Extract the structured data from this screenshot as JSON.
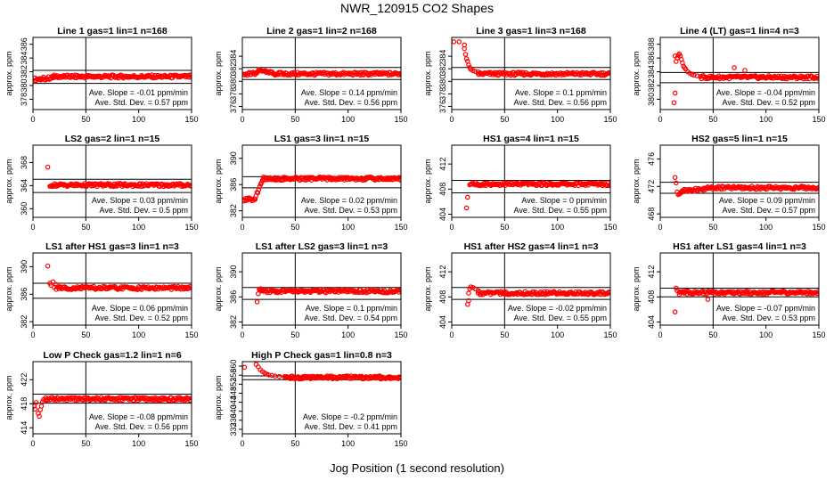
{
  "page": {
    "title": "NWR_120915  CO2 Shapes",
    "xlabel": "Jog Position (1 second resolution)"
  },
  "panel_text": {
    "ylabel": "approx. ppm",
    "slope_prefix": "Ave. Slope = ",
    "slope_unit": " ppm/min",
    "std_prefix": "Ave. Std. Dev. = ",
    "std_unit": " ppm"
  },
  "colors": {
    "points": "#ff0000",
    "axes": "#000000"
  },
  "chart_data": [
    {
      "type": "scatter",
      "title": "Line 1 gas=1 lin=1 n=168",
      "xlim": [
        0,
        150
      ],
      "xticks": [
        0,
        50,
        100,
        150
      ],
      "ylim": [
        376.5,
        387
      ],
      "yticks": [
        378,
        380,
        382,
        384,
        386
      ],
      "hlines": [
        380.3,
        382.2
      ],
      "vline": 50,
      "slope": "-0.01",
      "std": "0.57",
      "series": [
        {
          "x": [
            1,
            10
          ],
          "y": [
            380.9,
            381.0
          ]
        },
        {
          "x": [
            11,
            20
          ],
          "y": [
            381.0,
            381.2
          ]
        },
        {
          "x": [
            20,
            150
          ],
          "y": [
            381.3,
            381.3
          ]
        }
      ]
    },
    {
      "type": "scatter",
      "title": "Line 2 gas=1 lin=2 n=168",
      "xlim": [
        0,
        150
      ],
      "xticks": [
        0,
        50,
        100,
        150
      ],
      "ylim": [
        375.5,
        387
      ],
      "yticks": [
        376,
        378,
        380,
        382,
        384
      ],
      "hlines": [
        380.3,
        382.2
      ],
      "vline": 50,
      "slope": "0.14",
      "std": "0.56",
      "series": [
        {
          "x": [
            1,
            12
          ],
          "y": [
            381.1,
            381.3
          ]
        },
        {
          "x": [
            12,
            18
          ],
          "y": [
            381.4,
            381.9
          ]
        },
        {
          "x": [
            18,
            30
          ],
          "y": [
            381.7,
            381.3
          ]
        },
        {
          "x": [
            30,
            150
          ],
          "y": [
            381.2,
            381.2
          ]
        }
      ]
    },
    {
      "type": "scatter",
      "title": "Line 3 gas=1 lin=3 n=168",
      "xlim": [
        0,
        150
      ],
      "xticks": [
        0,
        50,
        100,
        150
      ],
      "ylim": [
        375.5,
        387
      ],
      "yticks": [
        376,
        378,
        380,
        382,
        384
      ],
      "hlines": [
        380.3,
        382.2
      ],
      "vline": 50,
      "slope": "0.1",
      "std": "0.56",
      "points": [
        [
          2,
          386.3
        ],
        [
          7,
          386.3
        ],
        [
          12,
          385.8
        ],
        [
          12,
          385.2
        ],
        [
          13,
          384.3
        ],
        [
          14,
          383.6
        ],
        [
          15,
          383.2
        ],
        [
          16,
          382.6
        ],
        [
          17,
          382.2
        ],
        [
          18,
          381.9
        ],
        [
          20,
          381.7
        ],
        [
          22,
          381.6
        ],
        [
          25,
          381.5
        ]
      ],
      "series": [
        {
          "x": [
            25,
            150
          ],
          "y": [
            381.2,
            381.2
          ]
        }
      ]
    },
    {
      "type": "scatter",
      "title": "Line 4 (LT) gas=1 lin=4 n=3",
      "xlim": [
        0,
        150
      ],
      "xticks": [
        0,
        50,
        100,
        150
      ],
      "ylim": [
        378.5,
        389
      ],
      "yticks": [
        380,
        382,
        384,
        386,
        388
      ],
      "hlines": [
        382.4,
        383.9
      ],
      "vline": 50,
      "slope": "-0.04",
      "std": "0.52",
      "points": [
        [
          13,
          379.5
        ],
        [
          14,
          380.9
        ],
        [
          14,
          386.3
        ],
        [
          15,
          385.5
        ],
        [
          16,
          386.0
        ],
        [
          17,
          386.4
        ],
        [
          18,
          386.6
        ],
        [
          19,
          386.3
        ],
        [
          20,
          385.8
        ],
        [
          21,
          385.3
        ],
        [
          22,
          384.8
        ],
        [
          23,
          384.6
        ],
        [
          24,
          384.4
        ],
        [
          26,
          384.0
        ],
        [
          28,
          383.8
        ],
        [
          30,
          383.6
        ],
        [
          32,
          383.5
        ],
        [
          35,
          383.4
        ],
        [
          38,
          383.3
        ],
        [
          70,
          384.6
        ],
        [
          80,
          384.2
        ]
      ],
      "series": [
        {
          "x": [
            38,
            150
          ],
          "y": [
            383.2,
            383.2
          ]
        }
      ]
    },
    {
      "type": "scatter",
      "title": "LS2 gas=2 lin=1 n=15",
      "xlim": [
        0,
        150
      ],
      "xticks": [
        0,
        50,
        100,
        150
      ],
      "ylim": [
        358.5,
        371
      ],
      "yticks": [
        360,
        364,
        368
      ],
      "hlines": [
        362.8,
        365.1
      ],
      "vline": 50,
      "slope": "0.03",
      "std": "0.5",
      "points": [
        [
          14,
          367.2
        ]
      ],
      "series": [
        {
          "x": [
            16,
            150
          ],
          "y": [
            364.1,
            364.1
          ]
        }
      ]
    },
    {
      "type": "scatter",
      "title": "LS1 gas=3 lin=1 n=15",
      "xlim": [
        0,
        150
      ],
      "xticks": [
        0,
        50,
        100,
        150
      ],
      "ylim": [
        381,
        392
      ],
      "yticks": [
        382,
        386,
        390
      ],
      "hlines": [
        385.5,
        387.2
      ],
      "vline": 50,
      "slope": "0.02",
      "std": "0.53",
      "series": [
        {
          "x": [
            1,
            12
          ],
          "y": [
            383.7,
            383.8
          ]
        },
        {
          "x": [
            12,
            20
          ],
          "y": [
            383.9,
            386.9
          ]
        },
        {
          "x": [
            20,
            150
          ],
          "y": [
            386.9,
            386.9
          ]
        }
      ]
    },
    {
      "type": "scatter",
      "title": "HS1 gas=4 lin=1 n=15",
      "xlim": [
        0,
        150
      ],
      "xticks": [
        0,
        50,
        100,
        150
      ],
      "ylim": [
        403.5,
        415
      ],
      "yticks": [
        404,
        408,
        412
      ],
      "hlines": [
        407.4,
        409.4
      ],
      "vline": 50,
      "slope": "0",
      "std": "0.55",
      "points": [
        [
          14,
          405.0
        ],
        [
          15,
          406.7
        ]
      ],
      "series": [
        {
          "x": [
            17,
            150
          ],
          "y": [
            408.8,
            408.8
          ]
        }
      ]
    },
    {
      "type": "scatter",
      "title": "HS2 gas=5 lin=1 n=15",
      "xlim": [
        0,
        150
      ],
      "xticks": [
        0,
        50,
        100,
        150
      ],
      "ylim": [
        467.5,
        478
      ],
      "yticks": [
        468,
        472,
        476
      ],
      "hlines": [
        471.0,
        472.6
      ],
      "vline": 50,
      "slope": "0.09",
      "std": "0.57",
      "points": [
        [
          14,
          473.3
        ],
        [
          15,
          472.5
        ],
        [
          16,
          471.2
        ],
        [
          17,
          470.8
        ],
        [
          18,
          470.9
        ],
        [
          19,
          471.0
        ],
        [
          20,
          471.2
        ]
      ],
      "series": [
        {
          "x": [
            20,
            45
          ],
          "y": [
            471.3,
            471.7
          ]
        },
        {
          "x": [
            45,
            150
          ],
          "y": [
            471.8,
            471.8
          ]
        }
      ]
    },
    {
      "type": "scatter",
      "title": "LS1 after HS1 gas=3 lin=1 n=3",
      "xlim": [
        0,
        150
      ],
      "xticks": [
        0,
        50,
        100,
        150
      ],
      "ylim": [
        381.5,
        392
      ],
      "yticks": [
        382,
        386,
        390
      ],
      "hlines": [
        385.4,
        387.6
      ],
      "vline": 50,
      "slope": "0.06",
      "std": "0.52",
      "points": [
        [
          14,
          390.1
        ],
        [
          16,
          387.6
        ],
        [
          17,
          387.3
        ],
        [
          19,
          387.8
        ],
        [
          20,
          387.0
        ],
        [
          22,
          387.4
        ]
      ],
      "series": [
        {
          "x": [
            22,
            150
          ],
          "y": [
            386.9,
            386.9
          ]
        }
      ]
    },
    {
      "type": "scatter",
      "title": "LS1 after LS2 gas=3 lin=1 n=3",
      "xlim": [
        0,
        150
      ],
      "xticks": [
        0,
        50,
        100,
        150
      ],
      "ylim": [
        381.5,
        393
      ],
      "yticks": [
        382,
        386,
        390
      ],
      "hlines": [
        385.6,
        387.5
      ],
      "vline": 50,
      "slope": "0.1",
      "std": "0.54",
      "points": [
        [
          14,
          385.2
        ],
        [
          15,
          386.5
        ],
        [
          16,
          387.2
        ],
        [
          17,
          387.3
        ]
      ],
      "series": [
        {
          "x": [
            17,
            150
          ],
          "y": [
            386.9,
            386.9
          ]
        }
      ]
    },
    {
      "type": "scatter",
      "title": "HS1 after HS2 gas=4 lin=1 n=3",
      "xlim": [
        0,
        150
      ],
      "xticks": [
        0,
        50,
        100,
        150
      ],
      "ylim": [
        403.5,
        415
      ],
      "yticks": [
        404,
        408,
        412
      ],
      "hlines": [
        407.6,
        409.5
      ],
      "vline": 50,
      "slope": "-0.02",
      "std": "0.55",
      "points": [
        [
          15,
          406.8
        ],
        [
          16,
          407.4
        ],
        [
          16,
          408.6
        ],
        [
          17,
          409.3
        ],
        [
          18,
          409.6
        ],
        [
          20,
          409.5
        ],
        [
          22,
          409.3
        ],
        [
          25,
          409.0
        ]
      ],
      "series": [
        {
          "x": [
            25,
            150
          ],
          "y": [
            408.6,
            408.6
          ]
        }
      ]
    },
    {
      "type": "scatter",
      "title": "HS1 after LS1 gas=4 lin=1 n=3",
      "xlim": [
        0,
        150
      ],
      "xticks": [
        0,
        50,
        100,
        150
      ],
      "ylim": [
        403.5,
        415
      ],
      "yticks": [
        404,
        408,
        412
      ],
      "hlines": [
        408.0,
        409.4
      ],
      "vline": 50,
      "slope": "-0.07",
      "std": "0.53",
      "points": [
        [
          14,
          405.6
        ],
        [
          15,
          409.4
        ],
        [
          16,
          409.0
        ],
        [
          18,
          408.4
        ],
        [
          40,
          408.9
        ],
        [
          45,
          407.6
        ]
      ],
      "series": [
        {
          "x": [
            18,
            150
          ],
          "y": [
            408.7,
            408.7
          ]
        }
      ]
    },
    {
      "type": "scatter",
      "title": "Low P Check gas=1.2 lin=1 n=6",
      "xlim": [
        0,
        150
      ],
      "xticks": [
        0,
        50,
        100,
        150
      ],
      "ylim": [
        413,
        425
      ],
      "yticks": [
        414,
        418,
        422
      ],
      "hlines": [
        418.1,
        419.6
      ],
      "vline": 50,
      "slope": "-0.08",
      "std": "0.56",
      "points": [
        [
          1,
          417.6
        ],
        [
          2,
          417.1
        ],
        [
          3,
          418.2
        ],
        [
          5,
          416.4
        ],
        [
          6,
          415.9
        ],
        [
          7,
          417.0
        ],
        [
          8,
          417.6
        ],
        [
          9,
          418.3
        ],
        [
          10,
          418.7
        ],
        [
          12,
          419.0
        ]
      ],
      "series": [
        {
          "x": [
            12,
            150
          ],
          "y": [
            418.8,
            418.8
          ]
        }
      ]
    },
    {
      "type": "scatter",
      "title": "High P Check gas=1 lin=0.8 n=3",
      "xlim": [
        0,
        150
      ],
      "xticks": [
        0,
        50,
        100,
        150
      ],
      "ylim": [
        330,
        362
      ],
      "yticks": [
        332,
        336,
        340,
        344,
        348,
        352,
        356,
        360
      ],
      "hlines": [
        354.0,
        355.7
      ],
      "vline": 50,
      "slope": "-0.2",
      "std": "0.41",
      "points": [
        [
          2,
          359.5
        ],
        [
          13,
          360.8
        ],
        [
          15,
          359.7
        ],
        [
          17,
          358.4
        ],
        [
          19,
          357.6
        ],
        [
          21,
          357.0
        ],
        [
          23,
          356.5
        ],
        [
          25,
          356.1
        ],
        [
          28,
          355.9
        ],
        [
          31,
          355.6
        ],
        [
          35,
          355.4
        ],
        [
          40,
          355.2
        ]
      ],
      "series": [
        {
          "x": [
            40,
            150
          ],
          "y": [
            355.0,
            355.0
          ]
        }
      ]
    }
  ]
}
